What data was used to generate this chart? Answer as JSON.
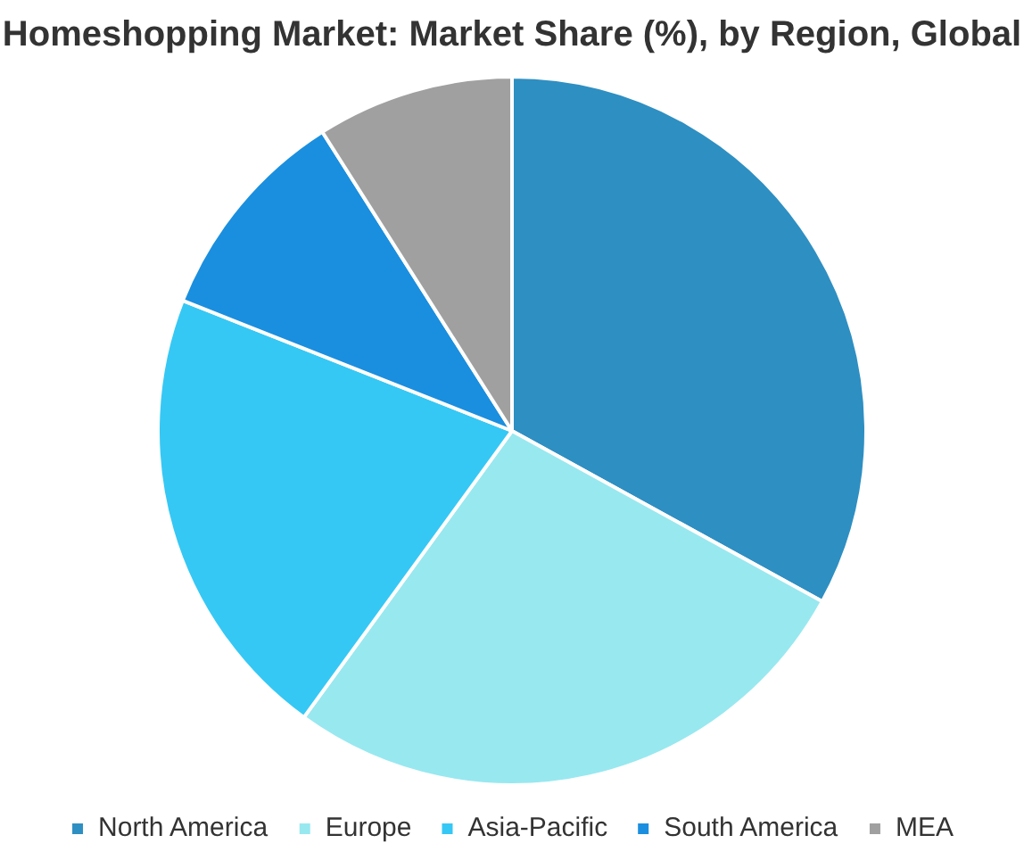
{
  "chart_data": {
    "type": "pie",
    "title": "Homeshopping Market: Market Share (%), by Region, Global",
    "categories": [
      "North America",
      "Europe",
      "Asia-Pacific",
      "South America",
      "MEA"
    ],
    "values": [
      33,
      27,
      21,
      10,
      9
    ],
    "colors": [
      "#2e8fc2",
      "#98e8f0",
      "#35c8f5",
      "#1a8fdf",
      "#a0a0a0"
    ],
    "legend": "bottom"
  }
}
